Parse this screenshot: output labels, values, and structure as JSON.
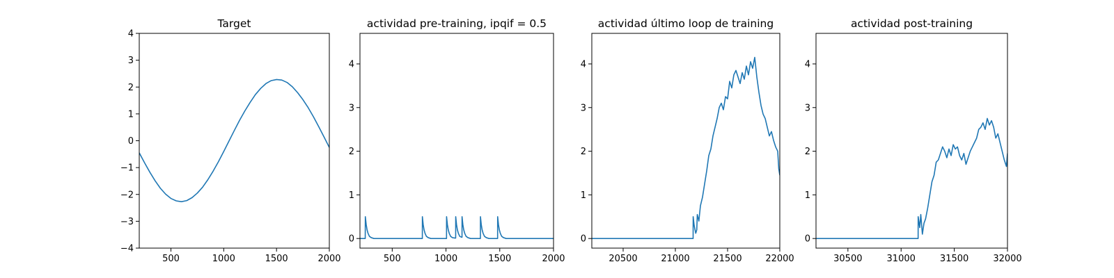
{
  "chart_data": [
    {
      "type": "line",
      "title": "Target",
      "xlabel": "",
      "ylabel": "",
      "xlim": [
        200,
        2000
      ],
      "ylim": [
        -4,
        4
      ],
      "xticks": [
        500,
        1000,
        1500,
        2000
      ],
      "yticks": [
        -4,
        -3,
        -2,
        -1,
        0,
        1,
        2,
        3,
        4
      ],
      "grid": false,
      "legend": "none",
      "line_color": "#1f77b4",
      "series": [
        {
          "x": [
            200,
            250,
            300,
            350,
            400,
            450,
            500,
            550,
            600,
            650,
            700,
            750,
            800,
            850,
            900,
            950,
            1000,
            1050,
            1100,
            1150,
            1200,
            1250,
            1300,
            1350,
            1400,
            1450,
            1500,
            1550,
            1600,
            1650,
            1700,
            1750,
            1800,
            1850,
            1900,
            1950,
            2000
          ],
          "y": [
            -0.45,
            -0.82,
            -1.17,
            -1.49,
            -1.77,
            -1.99,
            -2.15,
            -2.24,
            -2.27,
            -2.23,
            -2.12,
            -1.95,
            -1.73,
            -1.45,
            -1.13,
            -0.78,
            -0.4,
            -0.01,
            0.38,
            0.76,
            1.11,
            1.43,
            1.72,
            1.95,
            2.13,
            2.24,
            2.28,
            2.26,
            2.17,
            2.01,
            1.79,
            1.53,
            1.23,
            0.89,
            0.52,
            0.14,
            -0.25
          ]
        }
      ]
    },
    {
      "type": "line",
      "title": "actividad pre-training, ipqif = 0.5",
      "xlabel": "",
      "ylabel": "",
      "xlim": [
        200,
        2000
      ],
      "ylim": [
        -0.22,
        4.7
      ],
      "xticks": [
        500,
        1000,
        1500,
        2000
      ],
      "yticks": [
        0,
        1,
        2,
        3,
        4
      ],
      "grid": false,
      "legend": "none",
      "line_color": "#1f77b4",
      "series": [
        {
          "x": [
            200,
            249,
            250,
            258,
            266,
            275,
            288,
            305,
            330,
            780,
            780.5,
            788,
            796,
            805,
            818,
            835,
            860,
            1005,
            1005.5,
            1013,
            1021,
            1030,
            1043,
            1060,
            1085,
            1090,
            1090.5,
            1098,
            1106,
            1115,
            1128,
            1145,
            1149,
            1149.5,
            1157,
            1165,
            1174,
            1187,
            1204,
            1229,
            1320,
            1320.5,
            1328,
            1336,
            1345,
            1358,
            1375,
            1400,
            1480,
            1480.5,
            1488,
            1496,
            1505,
            1518,
            1535,
            1560,
            2000
          ],
          "y": [
            0,
            0,
            0.5,
            0.32,
            0.2,
            0.12,
            0.05,
            0.02,
            0,
            0,
            0.5,
            0.32,
            0.2,
            0.12,
            0.05,
            0.02,
            0,
            0,
            0.5,
            0.32,
            0.2,
            0.12,
            0.05,
            0.02,
            0.01,
            0.01,
            0.5,
            0.32,
            0.2,
            0.12,
            0.05,
            0.03,
            0.03,
            0.5,
            0.32,
            0.2,
            0.12,
            0.05,
            0.02,
            0,
            0,
            0.5,
            0.32,
            0.2,
            0.12,
            0.05,
            0.02,
            0,
            0,
            0.5,
            0.32,
            0.2,
            0.12,
            0.05,
            0.02,
            0,
            0
          ]
        }
      ]
    },
    {
      "type": "line",
      "title": "actividad último loop de training",
      "xlabel": "",
      "ylabel": "",
      "xlim": [
        20200,
        22000
      ],
      "ylim": [
        -0.22,
        4.7
      ],
      "xticks": [
        20500,
        21000,
        21500,
        22000
      ],
      "yticks": [
        0,
        1,
        2,
        3,
        4
      ],
      "grid": false,
      "legend": "none",
      "line_color": "#1f77b4",
      "series": [
        {
          "x": [
            20200,
            21170,
            21170.5,
            21180,
            21195,
            21205,
            21210,
            21225,
            21240,
            21260,
            21280,
            21300,
            21320,
            21340,
            21360,
            21380,
            21400,
            21420,
            21440,
            21460,
            21480,
            21500,
            21520,
            21540,
            21560,
            21580,
            21600,
            21620,
            21640,
            21660,
            21680,
            21700,
            21720,
            21740,
            21760,
            21780,
            21800,
            21820,
            21840,
            21860,
            21880,
            21900,
            21920,
            21940,
            21960,
            21980,
            21990,
            22000
          ],
          "y": [
            0,
            0,
            0.5,
            0.3,
            0.12,
            0.2,
            0.55,
            0.4,
            0.75,
            0.95,
            1.25,
            1.55,
            1.9,
            2.05,
            2.35,
            2.55,
            2.75,
            3.0,
            3.1,
            2.95,
            3.25,
            3.2,
            3.6,
            3.45,
            3.75,
            3.85,
            3.7,
            3.55,
            3.8,
            3.65,
            3.95,
            3.75,
            4.05,
            3.9,
            4.15,
            3.7,
            3.35,
            3.05,
            2.85,
            2.75,
            2.55,
            2.35,
            2.45,
            2.25,
            2.1,
            2.0,
            1.6,
            1.45
          ]
        }
      ]
    },
    {
      "type": "line",
      "title": "actividad post-training",
      "xlabel": "",
      "ylabel": "",
      "xlim": [
        30200,
        32000
      ],
      "ylim": [
        -0.22,
        4.7
      ],
      "xticks": [
        30500,
        31000,
        31500,
        32000
      ],
      "yticks": [
        0,
        1,
        2,
        3,
        4
      ],
      "grid": false,
      "legend": "none",
      "line_color": "#1f77b4",
      "series": [
        {
          "x": [
            30200,
            31160,
            31160.5,
            31175,
            31185,
            31200,
            31215,
            31230,
            31250,
            31270,
            31290,
            31310,
            31330,
            31350,
            31370,
            31390,
            31410,
            31430,
            31450,
            31470,
            31490,
            31510,
            31530,
            31550,
            31570,
            31590,
            31610,
            31630,
            31650,
            31670,
            31690,
            31710,
            31730,
            31750,
            31770,
            31790,
            31810,
            31830,
            31850,
            31870,
            31890,
            31910,
            31930,
            31950,
            31970,
            31990,
            32000
          ],
          "y": [
            0,
            0,
            0.5,
            0.25,
            0.55,
            0.1,
            0.35,
            0.45,
            0.7,
            1.0,
            1.3,
            1.45,
            1.75,
            1.8,
            1.95,
            2.1,
            2.0,
            1.85,
            2.05,
            1.9,
            2.15,
            2.05,
            2.1,
            1.9,
            1.8,
            1.95,
            1.7,
            1.85,
            2.0,
            2.1,
            2.2,
            2.3,
            2.5,
            2.55,
            2.65,
            2.5,
            2.75,
            2.6,
            2.7,
            2.55,
            2.3,
            2.4,
            2.2,
            2.0,
            1.8,
            1.65,
            1.95
          ]
        }
      ]
    }
  ]
}
